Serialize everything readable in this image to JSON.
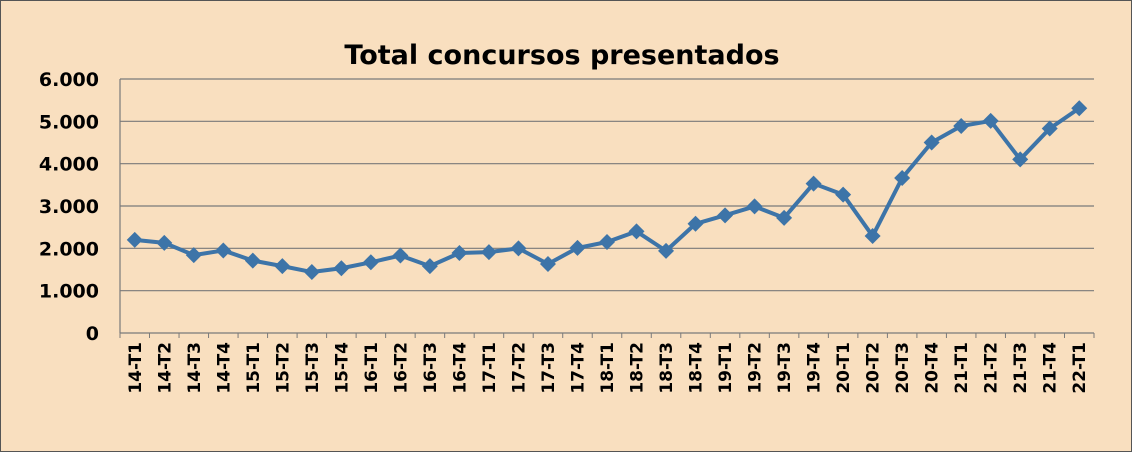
{
  "chart_data": {
    "type": "line",
    "title": "Total concursos presentados",
    "xlabel": "",
    "ylabel": "",
    "ylim": [
      0,
      6000
    ],
    "yticks": [
      "0",
      "1.000",
      "2.000",
      "3.000",
      "4.000",
      "5.000",
      "6.000"
    ],
    "grid": true,
    "legend": "none",
    "colors": {
      "background": "#f9dfbf",
      "plot_area": "#f9dfbf",
      "line": "#3d74a8",
      "grid": "#7a7a7a",
      "border": "#555555"
    },
    "categories": [
      "14-T1",
      "14-T2",
      "14-T3",
      "14-T4",
      "15-T1",
      "15-T2",
      "15-T3",
      "15-T4",
      "16-T1",
      "16-T2",
      "16-T3",
      "16-T4",
      "17-T1",
      "17-T2",
      "17-T3",
      "17-T4",
      "18-T1",
      "18-T2",
      "18-T3",
      "18-T4",
      "19-T1",
      "19-T2",
      "19-T3",
      "19-T4",
      "20-T1",
      "20-T2",
      "20-T3",
      "20-T4",
      "21-T1",
      "21-T2",
      "21-T3",
      "21-T4",
      "22-T1"
    ],
    "series": [
      {
        "values": [
          2200,
          2130,
          1840,
          1950,
          1710,
          1580,
          1440,
          1530,
          1670,
          1830,
          1580,
          1890,
          1910,
          2000,
          1630,
          2010,
          2150,
          2400,
          1940,
          2580,
          2780,
          2990,
          2720,
          3530,
          3270,
          2290,
          3660,
          4500,
          4890,
          5010,
          4100,
          4830,
          5310
        ]
      }
    ]
  }
}
